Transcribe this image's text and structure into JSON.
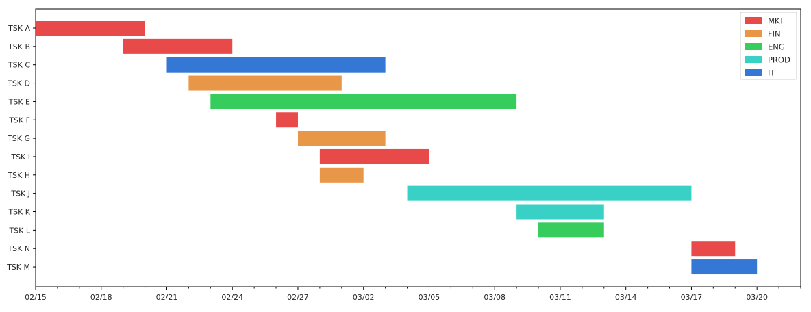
{
  "chart_data": {
    "type": "gantt",
    "title": "",
    "xlabel": "",
    "ylabel": "",
    "x_range": [
      "2022-02-15",
      "2022-03-22"
    ],
    "x_tick_labels": [
      "02/15",
      "02/18",
      "02/21",
      "02/24",
      "02/27",
      "03/02",
      "03/05",
      "03/08",
      "03/11",
      "03/14",
      "03/17",
      "03/20"
    ],
    "grid": false,
    "legend_position": "top-right",
    "departments": [
      {
        "name": "MKT",
        "color": "#e84a4a"
      },
      {
        "name": "FIN",
        "color": "#e89647"
      },
      {
        "name": "ENG",
        "color": "#37cd5d"
      },
      {
        "name": "PROD",
        "color": "#39d1c6"
      },
      {
        "name": "IT",
        "color": "#3477d4"
      }
    ],
    "tasks": [
      {
        "task": "TSK A",
        "department": "MKT",
        "start": "2022-02-15",
        "end": "2022-02-20"
      },
      {
        "task": "TSK B",
        "department": "MKT",
        "start": "2022-02-19",
        "end": "2022-02-24"
      },
      {
        "task": "TSK C",
        "department": "IT",
        "start": "2022-02-21",
        "end": "2022-03-03"
      },
      {
        "task": "TSK D",
        "department": "FIN",
        "start": "2022-02-22",
        "end": "2022-03-01"
      },
      {
        "task": "TSK E",
        "department": "ENG",
        "start": "2022-02-23",
        "end": "2022-03-09"
      },
      {
        "task": "TSK F",
        "department": "MKT",
        "start": "2022-02-26",
        "end": "2022-02-27"
      },
      {
        "task": "TSK G",
        "department": "FIN",
        "start": "2022-02-27",
        "end": "2022-03-03"
      },
      {
        "task": "TSK I",
        "department": "MKT",
        "start": "2022-02-28",
        "end": "2022-03-05"
      },
      {
        "task": "TSK H",
        "department": "FIN",
        "start": "2022-02-28",
        "end": "2022-03-02"
      },
      {
        "task": "TSK J",
        "department": "PROD",
        "start": "2022-03-04",
        "end": "2022-03-17"
      },
      {
        "task": "TSK K",
        "department": "PROD",
        "start": "2022-03-09",
        "end": "2022-03-13"
      },
      {
        "task": "TSK L",
        "department": "ENG",
        "start": "2022-03-10",
        "end": "2022-03-13"
      },
      {
        "task": "TSK N",
        "department": "MKT",
        "start": "2022-03-17",
        "end": "2022-03-19"
      },
      {
        "task": "TSK M",
        "department": "IT",
        "start": "2022-03-17",
        "end": "2022-03-20"
      }
    ]
  }
}
